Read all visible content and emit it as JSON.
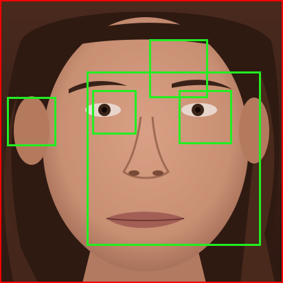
{
  "image": {
    "subject": "face-photo",
    "background_color": "#3a1f16",
    "skin_color": "#c88f73",
    "hair_color": "#2f1a12",
    "frame_color": "#ff0000"
  },
  "detections": {
    "box_color": "#22ee22",
    "boxes": [
      {
        "type": "face"
      },
      {
        "type": "left-eye"
      },
      {
        "type": "right-eye"
      },
      {
        "type": "ear"
      },
      {
        "type": "forehead"
      }
    ]
  }
}
